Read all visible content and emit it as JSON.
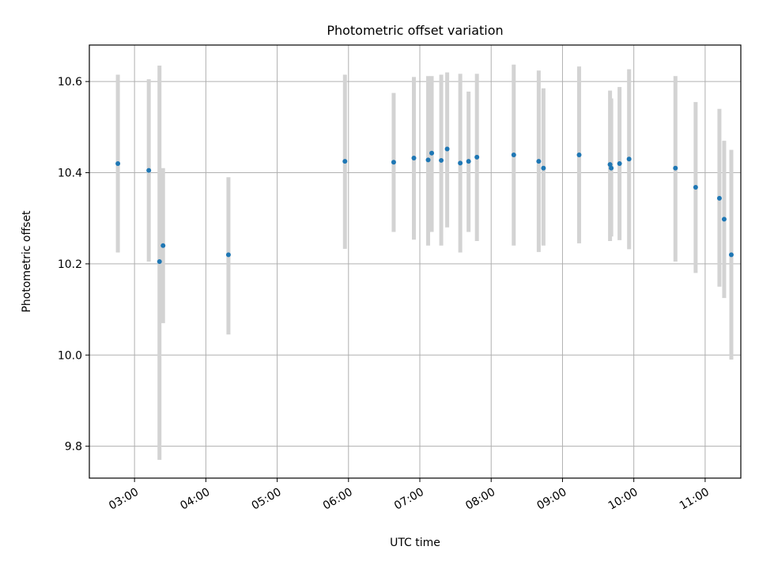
{
  "chart_data": {
    "type": "scatter",
    "title": "Photometric offset variation",
    "xlabel": "UTC time",
    "ylabel": "Photometric offset",
    "x_range": [
      "02:22",
      "11:30"
    ],
    "ylim": [
      9.73,
      10.68
    ],
    "x_ticks": [
      "03:00",
      "04:00",
      "05:00",
      "06:00",
      "07:00",
      "08:00",
      "09:00",
      "10:00",
      "11:00"
    ],
    "y_ticks": [
      9.8,
      10.0,
      10.2,
      10.4,
      10.6
    ],
    "y_tick_labels": [
      "9.8",
      "10.0",
      "10.2",
      "10.4",
      "10.6"
    ],
    "grid": true,
    "point_color": "#1f77b4",
    "errorbar_color": "#d3d3d3",
    "points": [
      {
        "x": "02:46",
        "y": 10.42,
        "yerr_low": 10.225,
        "yerr_high": 10.615
      },
      {
        "x": "03:12",
        "y": 10.405,
        "yerr_low": 10.205,
        "yerr_high": 10.605
      },
      {
        "x": "03:21",
        "y": 10.205,
        "yerr_low": 9.77,
        "yerr_high": 10.635
      },
      {
        "x": "03:24",
        "y": 10.24,
        "yerr_low": 10.07,
        "yerr_high": 10.41
      },
      {
        "x": "04:19",
        "y": 10.22,
        "yerr_low": 10.045,
        "yerr_high": 10.39
      },
      {
        "x": "05:57",
        "y": 10.425,
        "yerr_low": 10.233,
        "yerr_high": 10.615
      },
      {
        "x": "06:38",
        "y": 10.423,
        "yerr_low": 10.27,
        "yerr_high": 10.575
      },
      {
        "x": "06:55",
        "y": 10.432,
        "yerr_low": 10.253,
        "yerr_high": 10.61
      },
      {
        "x": "07:07",
        "y": 10.428,
        "yerr_low": 10.24,
        "yerr_high": 10.612
      },
      {
        "x": "07:10",
        "y": 10.443,
        "yerr_low": 10.27,
        "yerr_high": 10.612
      },
      {
        "x": "07:18",
        "y": 10.427,
        "yerr_low": 10.24,
        "yerr_high": 10.615
      },
      {
        "x": "07:23",
        "y": 10.452,
        "yerr_low": 10.28,
        "yerr_high": 10.62
      },
      {
        "x": "07:34",
        "y": 10.421,
        "yerr_low": 10.225,
        "yerr_high": 10.617
      },
      {
        "x": "07:41",
        "y": 10.425,
        "yerr_low": 10.27,
        "yerr_high": 10.578
      },
      {
        "x": "07:48",
        "y": 10.434,
        "yerr_low": 10.25,
        "yerr_high": 10.617
      },
      {
        "x": "08:19",
        "y": 10.439,
        "yerr_low": 10.24,
        "yerr_high": 10.637
      },
      {
        "x": "08:40",
        "y": 10.425,
        "yerr_low": 10.226,
        "yerr_high": 10.624
      },
      {
        "x": "08:44",
        "y": 10.41,
        "yerr_low": 10.24,
        "yerr_high": 10.585
      },
      {
        "x": "09:14",
        "y": 10.439,
        "yerr_low": 10.245,
        "yerr_high": 10.633
      },
      {
        "x": "09:40",
        "y": 10.418,
        "yerr_low": 10.25,
        "yerr_high": 10.58
      },
      {
        "x": "09:41",
        "y": 10.41,
        "yerr_low": 10.26,
        "yerr_high": 10.563
      },
      {
        "x": "09:48",
        "y": 10.42,
        "yerr_low": 10.252,
        "yerr_high": 10.588
      },
      {
        "x": "09:56",
        "y": 10.43,
        "yerr_low": 10.232,
        "yerr_high": 10.627
      },
      {
        "x": "10:35",
        "y": 10.41,
        "yerr_low": 10.205,
        "yerr_high": 10.612
      },
      {
        "x": "10:52",
        "y": 10.368,
        "yerr_low": 10.18,
        "yerr_high": 10.555
      },
      {
        "x": "11:12",
        "y": 10.344,
        "yerr_low": 10.15,
        "yerr_high": 10.54
      },
      {
        "x": "11:16",
        "y": 10.298,
        "yerr_low": 10.125,
        "yerr_high": 10.47
      },
      {
        "x": "11:22",
        "y": 10.22,
        "yerr_low": 9.99,
        "yerr_high": 10.45
      }
    ]
  }
}
